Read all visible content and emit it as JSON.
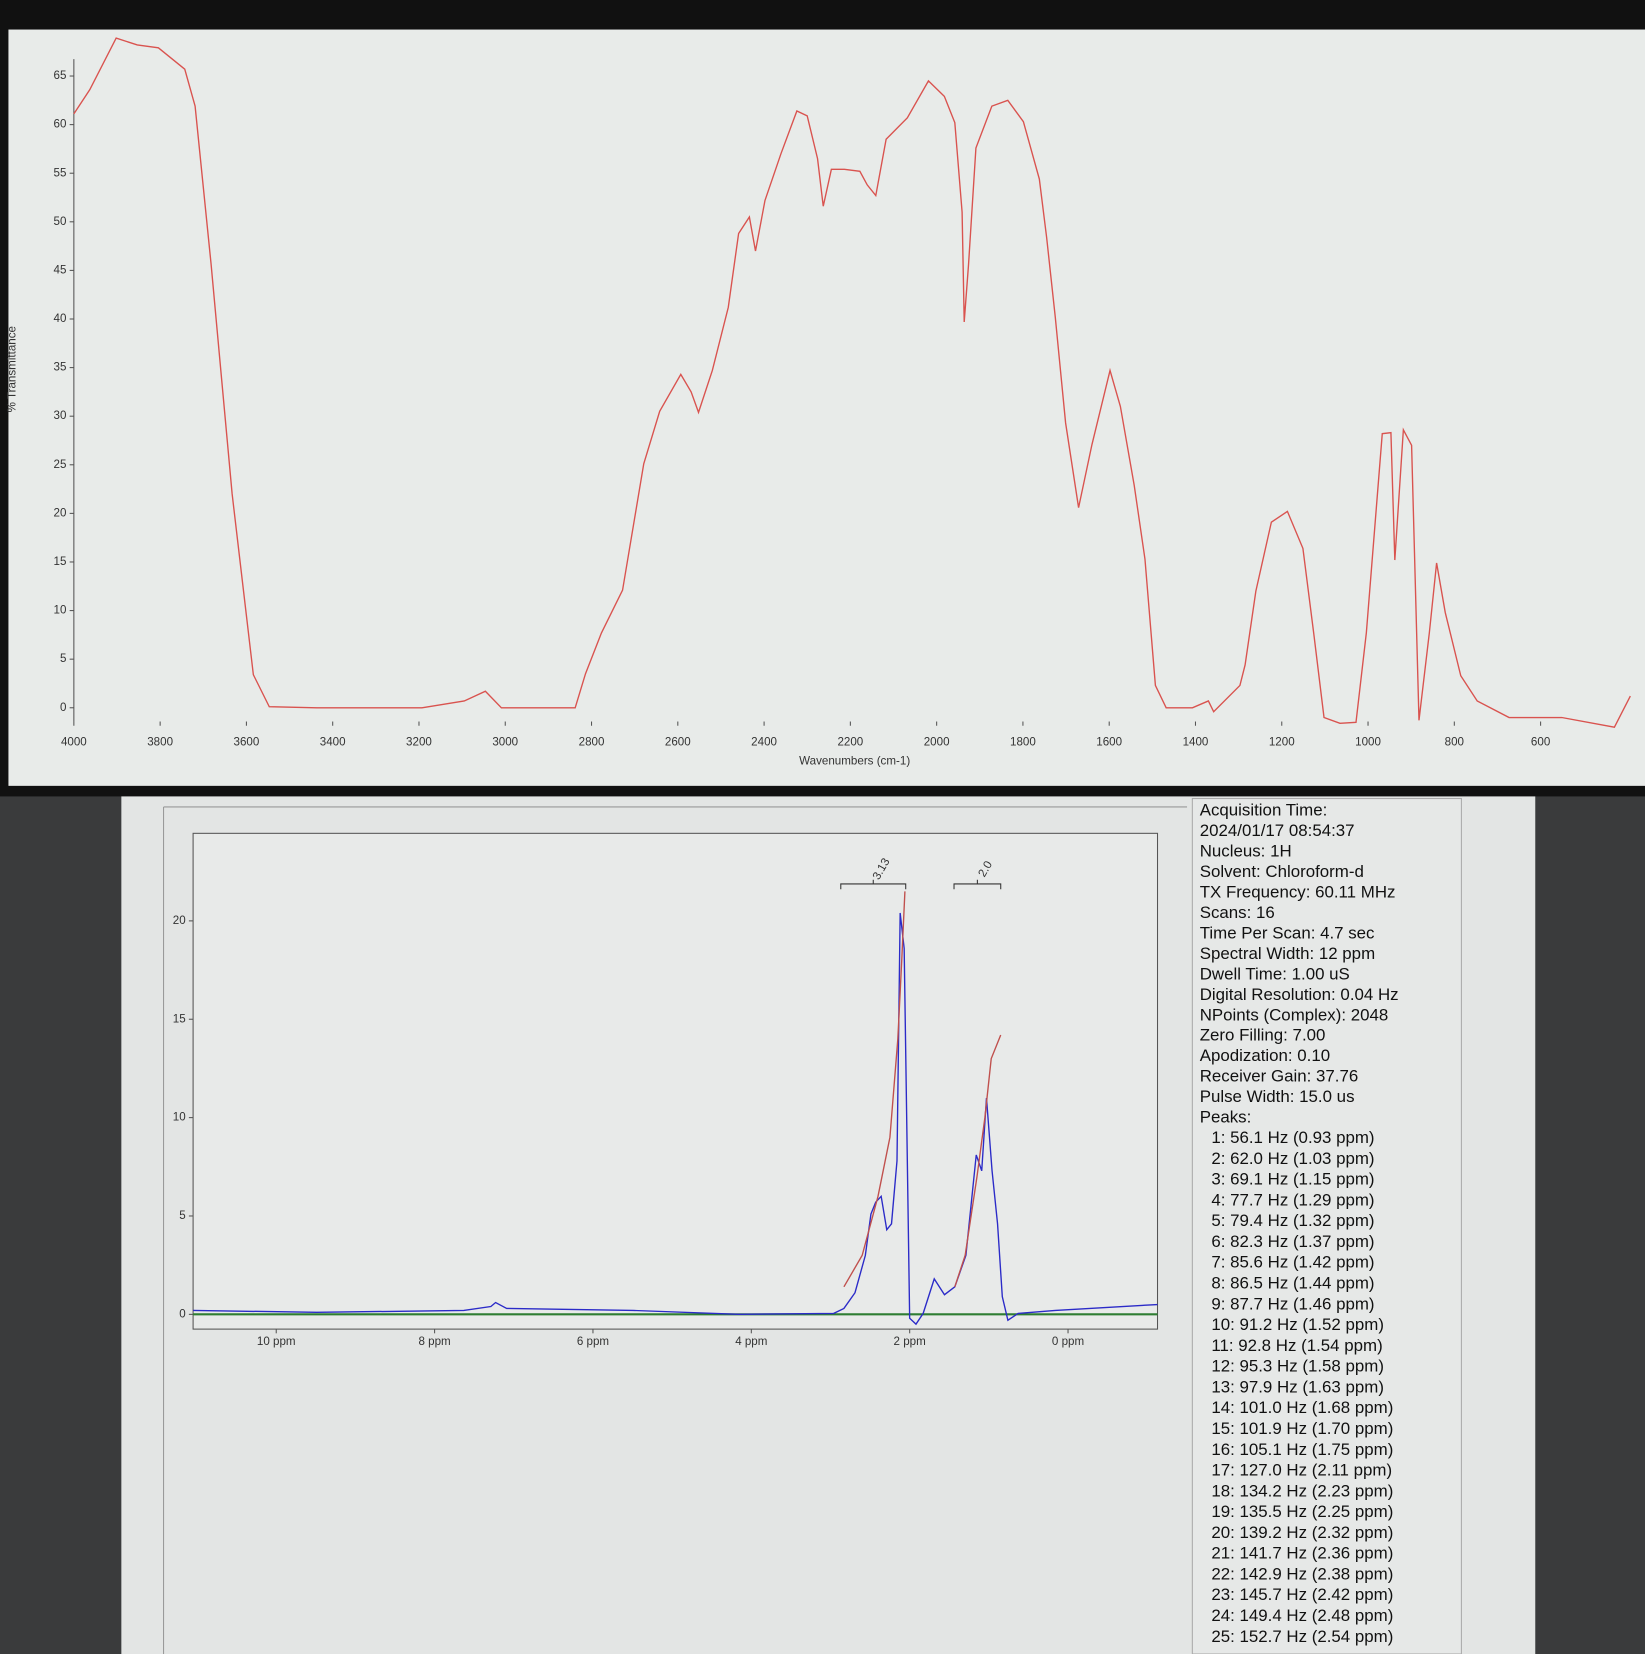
{
  "chart_data": [
    {
      "type": "line",
      "x_label": "Wavenumbers (cm-1)",
      "y_label": "% Transmittance",
      "xlim": [
        4000,
        380
      ],
      "ylim": [
        -2.5,
        70
      ],
      "xticks": [
        4000,
        3800,
        3600,
        3400,
        3200,
        3000,
        2800,
        2600,
        2400,
        2200,
        2000,
        1800,
        1600,
        1400,
        1200,
        1000,
        800,
        600
      ],
      "yticks": [
        0,
        5,
        10,
        15,
        20,
        25,
        30,
        35,
        40,
        45,
        50,
        55,
        60,
        65
      ],
      "series": [
        {
          "color": "#d9534f",
          "x": [
            4000,
            3963,
            3902,
            3853,
            3804,
            3743,
            3719,
            3682,
            3633,
            3584,
            3547,
            3437,
            3193,
            3095,
            3046,
            3009,
            2838,
            2814,
            2777,
            2728,
            2679,
            2642,
            2593,
            2569,
            2552,
            2520,
            2483,
            2459,
            2434,
            2420,
            2398,
            2361,
            2324,
            2300,
            2276,
            2263,
            2244,
            2214,
            2178,
            2161,
            2141,
            2117,
            2068,
            2019,
            1982,
            1958,
            1941,
            1936,
            1926,
            1909,
            1872,
            1835,
            1799,
            1762,
            1745,
            1725,
            1701,
            1671,
            1640,
            1598,
            1574,
            1542,
            1517,
            1493,
            1468,
            1407,
            1370,
            1358,
            1297,
            1285,
            1260,
            1224,
            1187,
            1151,
            1126,
            1102,
            1065,
            1028,
            1004,
            967,
            947,
            938,
            918,
            899,
            882,
            858,
            841,
            821,
            785,
            747,
            673,
            551,
            429,
            392
          ],
          "values": [
            61.1,
            63.6,
            68.9,
            68.2,
            67.9,
            65.7,
            61.9,
            45.7,
            22.0,
            3.4,
            0.1,
            0,
            0,
            0.7,
            1.7,
            0,
            0,
            3.5,
            7.7,
            12.1,
            25.1,
            30.5,
            34.3,
            32.5,
            30.4,
            34.7,
            41.2,
            48.8,
            50.5,
            47.0,
            52.2,
            57.0,
            61.4,
            60.9,
            56.5,
            51.6,
            55.4,
            55.4,
            55.2,
            53.8,
            52.7,
            58.5,
            60.7,
            64.5,
            62.9,
            60.2,
            51.0,
            39.7,
            45.6,
            57.6,
            61.9,
            62.5,
            60.3,
            54.4,
            48.4,
            40.2,
            29.3,
            20.6,
            27.1,
            34.7,
            31.0,
            22.9,
            15.3,
            2.3,
            0,
            0,
            0.7,
            -0.4,
            2.3,
            4.4,
            12.0,
            19.1,
            20.2,
            16.4,
            7.7,
            -1.0,
            -1.6,
            -1.5,
            7.7,
            28.2,
            28.3,
            15.2,
            28.6,
            27.0,
            -1.3,
            7.7,
            14.9,
            9.8,
            3.3,
            0.7,
            -1.0,
            -1.0,
            -2.0,
            1.2
          ]
        }
      ]
    },
    {
      "type": "line",
      "xlim": [
        11.05,
        -1.13
      ],
      "ylim": [
        -0.75,
        24.45
      ],
      "xticks": [
        {
          "value": 10,
          "label": "10 ppm"
        },
        {
          "value": 8,
          "label": "8 ppm"
        },
        {
          "value": 6,
          "label": "6 ppm"
        },
        {
          "value": 4,
          "label": "4 ppm"
        },
        {
          "value": 2,
          "label": "2 ppm"
        },
        {
          "value": 0,
          "label": "0 ppm"
        }
      ],
      "yticks": [
        0,
        5,
        10,
        15,
        20
      ],
      "series": [
        {
          "color": "#2b2bc8",
          "x": [
            11.05,
            9.49,
            7.63,
            7.29,
            7.23,
            7.09,
            5.49,
            4.16,
            2.96,
            2.83,
            2.69,
            2.56,
            2.49,
            2.43,
            2.36,
            2.29,
            2.23,
            2.16,
            2.12,
            2.07,
            2.0,
            1.92,
            1.83,
            1.69,
            1.56,
            1.43,
            1.29,
            1.16,
            1.09,
            1.03,
            0.96,
            0.89,
            0.83,
            0.76,
            0.63,
            0.16,
            -1.13
          ],
          "values": [
            0.2,
            0.1,
            0.2,
            0.4,
            0.6,
            0.3,
            0.2,
            0,
            0.05,
            0.3,
            1.1,
            3.0,
            5.1,
            5.7,
            6.0,
            4.3,
            4.6,
            7.8,
            20.4,
            18.6,
            -0.2,
            -0.5,
            0.05,
            1.8,
            1.0,
            1.4,
            3.0,
            8.1,
            7.3,
            11.0,
            7.3,
            4.6,
            0.9,
            -0.3,
            0.05,
            0.2,
            0.5
          ]
        },
        {
          "color": "#c0504d",
          "x": [
            2.83,
            2.6,
            2.4,
            2.25,
            2.15,
            2.1,
            2.06
          ],
          "values": [
            1.4,
            3,
            6,
            9,
            14,
            18,
            21.5
          ]
        },
        {
          "color": "#c0504d",
          "x": [
            1.43,
            1.3,
            1.15,
            1.05,
            0.97,
            0.85
          ],
          "values": [
            1.4,
            3,
            7,
            10,
            13,
            14.2
          ]
        }
      ],
      "integrals": [
        {
          "value": 3.13,
          "range": [
            2.87,
            2.05
          ]
        },
        {
          "value": 2.0,
          "label": "2.0",
          "range": [
            1.44,
            0.85
          ]
        }
      ]
    }
  ],
  "acquisition": {
    "lines": [
      "Acquisition Time:",
      " 2024/01/17 08:54:37",
      "Nucleus: 1H",
      "Solvent: Chloroform-d",
      "TX Frequency: 60.11 MHz",
      "Scans: 16",
      "Time Per Scan: 4.7 sec",
      "Spectral Width: 12 ppm",
      "Dwell Time: 1.00 uS",
      "Digital Resolution: 0.04 Hz",
      "NPoints (Complex): 2048",
      "Zero Filling: 7.00",
      "Apodization: 0.10",
      "Receiver Gain: 37.76",
      "Pulse Width: 15.0 us",
      "Peaks:"
    ],
    "peaks": [
      "1:  56.1 Hz (0.93 ppm)",
      "2:  62.0 Hz (1.03 ppm)",
      "3:  69.1 Hz (1.15 ppm)",
      "4:  77.7 Hz (1.29 ppm)",
      "5:  79.4 Hz (1.32 ppm)",
      "6:  82.3 Hz (1.37 ppm)",
      "7:  85.6 Hz (1.42 ppm)",
      "8:  86.5 Hz (1.44 ppm)",
      "9:  87.7 Hz (1.46 ppm)",
      "10:  91.2 Hz (1.52 ppm)",
      "11:  92.8 Hz (1.54 ppm)",
      "12:  95.3 Hz (1.58 ppm)",
      "13:  97.9 Hz (1.63 ppm)",
      "14:  101.0 Hz (1.68 ppm)",
      "15:  101.9 Hz (1.70 ppm)",
      "16:  105.1 Hz (1.75 ppm)",
      "17:  127.0 Hz (2.11 ppm)",
      "18:  134.2 Hz (2.23 ppm)",
      "19:  135.5 Hz (2.25 ppm)",
      "20:  139.2 Hz (2.32 ppm)",
      "21:  141.7 Hz (2.36 ppm)",
      "22:  142.9 Hz (2.38 ppm)",
      "23:  145.7 Hz (2.42 ppm)",
      "24:  149.4 Hz (2.48 ppm)",
      "25:  152.7 Hz (2.54 ppm)"
    ]
  }
}
